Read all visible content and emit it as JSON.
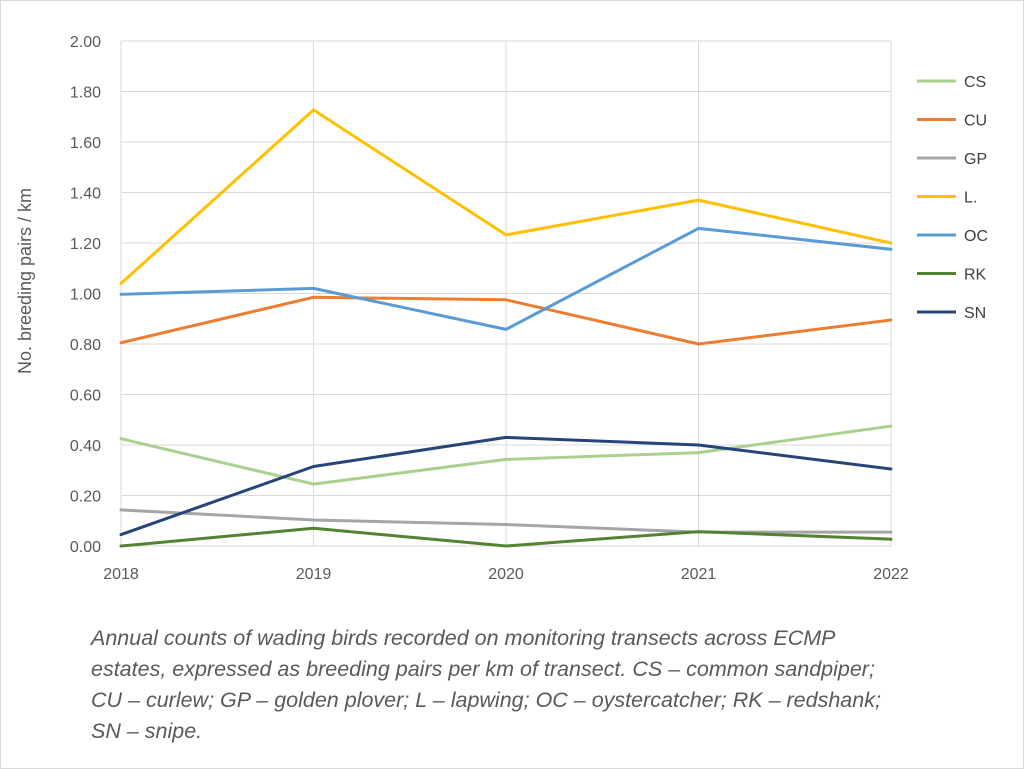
{
  "chart_data": {
    "type": "line",
    "title": "",
    "xlabel": "",
    "ylabel": "No. breeding pairs / km",
    "categories": [
      "2018",
      "2019",
      "2020",
      "2021",
      "2022"
    ],
    "ylim": [
      0,
      2.0
    ],
    "yticks": [
      "0.00",
      "0.20",
      "0.40",
      "0.60",
      "0.80",
      "1.00",
      "1.20",
      "1.40",
      "1.60",
      "1.80",
      "2.00"
    ],
    "grid": true,
    "legend_position": "right",
    "series": [
      {
        "name": "CS",
        "color": "#a9d18e",
        "values": [
          0.425,
          0.245,
          0.343,
          0.37,
          0.475
        ]
      },
      {
        "name": "CU",
        "color": "#ed7d31",
        "values": [
          0.805,
          0.985,
          0.975,
          0.8,
          0.895
        ]
      },
      {
        "name": "GP",
        "color": "#a5a5a5",
        "values": [
          0.143,
          0.103,
          0.085,
          0.055,
          0.055
        ]
      },
      {
        "name": "L.",
        "color": "#ffc000",
        "values": [
          1.04,
          1.727,
          1.232,
          1.37,
          1.2
        ]
      },
      {
        "name": "OC",
        "color": "#5b9bd5",
        "values": [
          0.997,
          1.02,
          0.858,
          1.258,
          1.175
        ]
      },
      {
        "name": "RK",
        "color": "#548235",
        "values": [
          0.0,
          0.07,
          0.0,
          0.057,
          0.027
        ]
      },
      {
        "name": "SN",
        "color": "#264478",
        "values": [
          0.045,
          0.315,
          0.43,
          0.4,
          0.305
        ]
      }
    ]
  },
  "caption": "Annual counts of wading birds recorded on monitoring transects across ECMP estates, expressed as breeding pairs per km of transect. CS – common sandpiper; CU – curlew; GP – golden plover; L – lapwing; OC – oystercatcher; RK – redshank; SN – snipe."
}
